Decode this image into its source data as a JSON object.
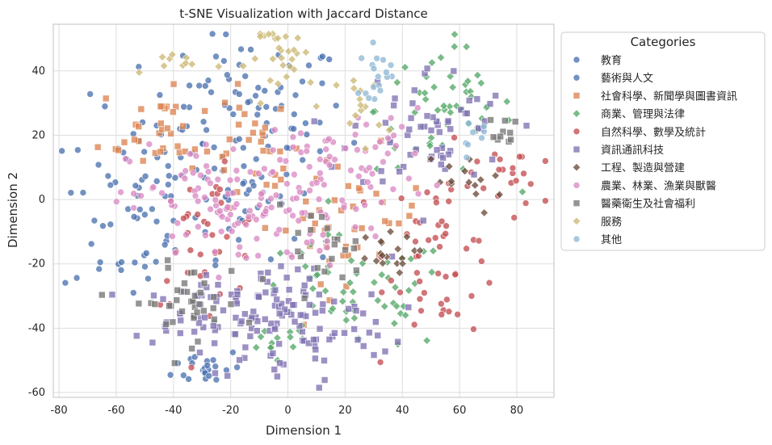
{
  "chart_data": {
    "type": "scatter",
    "title": "t-SNE Visualization with Jaccard Distance",
    "xlabel": "Dimension 1",
    "ylabel": "Dimension 2",
    "xlim": [
      -82,
      93
    ],
    "ylim": [
      -61.5,
      54.5
    ],
    "xticks": [
      -80,
      -60,
      -40,
      -20,
      0,
      20,
      40,
      60,
      80
    ],
    "yticks": [
      40,
      20,
      0,
      -20,
      -40,
      -60
    ],
    "grid": true,
    "legend": {
      "title": "Categories",
      "placement": "outside-right-top"
    },
    "series": [
      {
        "name": "教育",
        "marker": "circle",
        "color": "#4C72B0",
        "regions": [
          [
            -15,
            25,
            18,
            13,
            90
          ],
          [
            -55,
            -2,
            12,
            16,
            60
          ],
          [
            -28,
            -52,
            6,
            3,
            22
          ]
        ]
      },
      {
        "name": "藝術與人文",
        "marker": "circle",
        "color": "#4C72B0",
        "regions": [
          [
            -15,
            -2,
            10,
            8,
            30
          ]
        ]
      },
      {
        "name": "社會科學、新聞學與圖書資訊",
        "marker": "square",
        "color": "#DD8452",
        "regions": [
          [
            -42,
            22,
            12,
            8,
            40
          ],
          [
            20,
            -5,
            14,
            10,
            45
          ],
          [
            -10,
            15,
            8,
            6,
            20
          ]
        ]
      },
      {
        "name": "商業、管理與法律",
        "marker": "diamond",
        "color": "#55A868",
        "regions": [
          [
            55,
            28,
            12,
            10,
            55
          ],
          [
            22,
            -30,
            18,
            9,
            60
          ],
          [
            -5,
            -45,
            6,
            3,
            12
          ]
        ]
      },
      {
        "name": "自然科學、數學及統計",
        "marker": "circle",
        "color": "#C44E52",
        "regions": [
          [
            55,
            -15,
            10,
            14,
            55
          ],
          [
            -28,
            -12,
            10,
            10,
            35
          ],
          [
            78,
            8,
            6,
            5,
            18
          ]
        ]
      },
      {
        "name": "資訊通訊科技",
        "marker": "square",
        "color": "#8172B3",
        "regions": [
          [
            0,
            -38,
            18,
            10,
            110
          ],
          [
            50,
            22,
            14,
            10,
            60
          ],
          [
            -30,
            -35,
            12,
            5,
            40
          ]
        ]
      },
      {
        "name": "工程、製造與營建",
        "marker": "diamond",
        "color": "#6b4c3b",
        "regions": [
          [
            32,
            -17,
            6,
            3,
            18
          ],
          [
            60,
            5,
            8,
            5,
            14
          ]
        ]
      },
      {
        "name": "農業、林業、漁業與獸醫",
        "marker": "circle",
        "color": "#DA8BC3",
        "regions": [
          [
            -15,
            -2,
            20,
            10,
            130
          ],
          [
            22,
            12,
            14,
            8,
            55
          ]
        ]
      },
      {
        "name": "醫藥衛生及社會福利",
        "marker": "square",
        "color": "#777777",
        "regions": [
          [
            -35,
            -32,
            10,
            6,
            40
          ],
          [
            10,
            -15,
            8,
            6,
            20
          ],
          [
            76,
            20,
            3,
            3,
            10
          ]
        ]
      },
      {
        "name": "服務",
        "marker": "diamond",
        "color": "#CCB974",
        "regions": [
          [
            0,
            44,
            7,
            5,
            28
          ],
          [
            -35,
            43,
            6,
            2,
            10
          ],
          [
            25,
            28,
            4,
            6,
            15
          ]
        ]
      },
      {
        "name": "其他",
        "marker": "circle",
        "color": "#8fb9d6",
        "regions": [
          [
            31,
            40,
            3,
            4,
            18
          ],
          [
            65,
            18,
            3,
            3,
            8
          ]
        ]
      }
    ]
  }
}
